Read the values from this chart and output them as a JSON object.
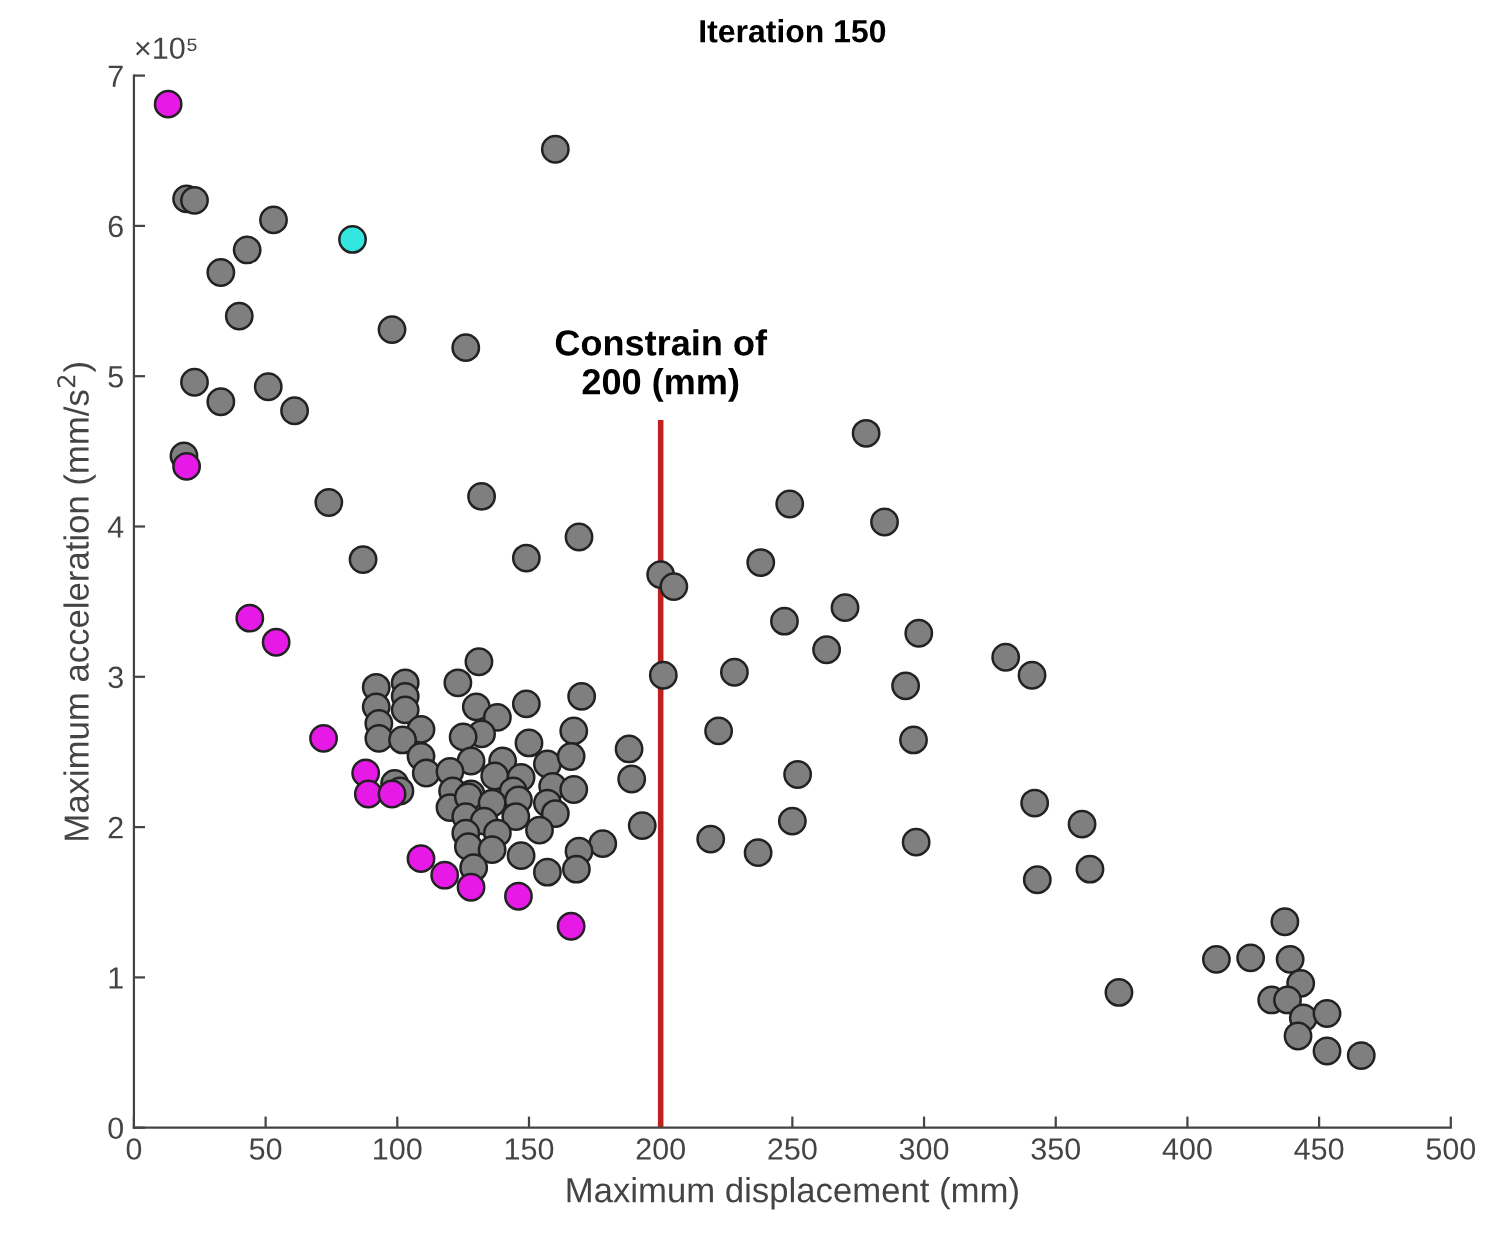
{
  "chart_data": {
    "type": "scatter",
    "title": "Iteration 150",
    "xlabel": "Maximum displacement (mm)",
    "ylabel": "Maximum acceleration (mm/s$^{2}$)",
    "marker": "circle",
    "grid": false,
    "xlim": [
      0,
      500
    ],
    "xticks": [
      0,
      50,
      100,
      150,
      200,
      250,
      300,
      350,
      400,
      450,
      500
    ],
    "ylim": [
      0,
      7
    ],
    "yticks": [
      0,
      1,
      2,
      3,
      4,
      5,
      6,
      7
    ],
    "annotations": [
      "×10⁵"
    ],
    "ref_lines": [
      {
        "axis": "x",
        "value": 200,
        "label": "Constrain of\n200 (mm)",
        "color": "#c0201e"
      }
    ],
    "series": [
      {
        "color": "#7f7f7f",
        "x": [
          160,
          20,
          23,
          53,
          43,
          33,
          40,
          98,
          126,
          23,
          33,
          51,
          61,
          19,
          74,
          132,
          87,
          149,
          169,
          200,
          205,
          278,
          249,
          285,
          238,
          270,
          247,
          263,
          298,
          331,
          341,
          228,
          201,
          293,
          222,
          296,
          188,
          189,
          252,
          193,
          178,
          219,
          237,
          250,
          297,
          342,
          360,
          343,
          363,
          374,
          411,
          424,
          437,
          439,
          443,
          432,
          438,
          444,
          442,
          453,
          453,
          466,
          131,
          92,
          103,
          123,
          149,
          170,
          92,
          103,
          103,
          130,
          138,
          93,
          109,
          132,
          167,
          93,
          102,
          125,
          150,
          109,
          128,
          140,
          157,
          166,
          111,
          120,
          137,
          147,
          99,
          121,
          128,
          144,
          159,
          167,
          101,
          120,
          127,
          136,
          146,
          157,
          126,
          133,
          145,
          160,
          126,
          138,
          154,
          127,
          136,
          147,
          169,
          129,
          157,
          168
        ],
        "values": [
          6.51,
          6.18,
          6.17,
          6.04,
          5.84,
          5.69,
          5.4,
          5.31,
          5.19,
          4.96,
          4.83,
          4.93,
          4.77,
          4.47,
          4.16,
          4.2,
          3.78,
          3.79,
          3.93,
          3.68,
          3.6,
          4.62,
          4.15,
          4.03,
          3.76,
          3.46,
          3.37,
          3.18,
          3.29,
          3.13,
          3.01,
          3.03,
          3.01,
          2.94,
          2.64,
          2.58,
          2.52,
          2.32,
          2.35,
          2.01,
          1.89,
          1.92,
          1.83,
          2.04,
          1.9,
          2.16,
          2.02,
          1.65,
          1.72,
          0.9,
          1.12,
          1.13,
          1.37,
          1.12,
          0.96,
          0.85,
          0.85,
          0.73,
          0.61,
          0.76,
          0.51,
          0.48,
          3.1,
          2.93,
          2.96,
          2.96,
          2.82,
          2.87,
          2.8,
          2.87,
          2.78,
          2.8,
          2.73,
          2.69,
          2.65,
          2.62,
          2.64,
          2.59,
          2.58,
          2.6,
          2.56,
          2.47,
          2.44,
          2.44,
          2.42,
          2.47,
          2.36,
          2.37,
          2.34,
          2.33,
          2.29,
          2.24,
          2.22,
          2.24,
          2.27,
          2.25,
          2.24,
          2.13,
          2.2,
          2.16,
          2.18,
          2.16,
          2.07,
          2.04,
          2.07,
          2.09,
          1.96,
          1.96,
          1.98,
          1.87,
          1.85,
          1.81,
          1.84,
          1.73,
          1.7,
          1.72
        ]
      },
      {
        "color": "#e619e6",
        "x": [
          13,
          20,
          44,
          54,
          72,
          88,
          89,
          98,
          109,
          118,
          128,
          146,
          166
        ],
        "values": [
          6.81,
          4.4,
          3.39,
          3.23,
          2.59,
          2.36,
          2.22,
          2.22,
          1.79,
          1.68,
          1.6,
          1.54,
          1.34
        ]
      },
      {
        "color": "#33e6e0",
        "x": [
          83
        ],
        "values": [
          5.91
        ]
      }
    ]
  }
}
